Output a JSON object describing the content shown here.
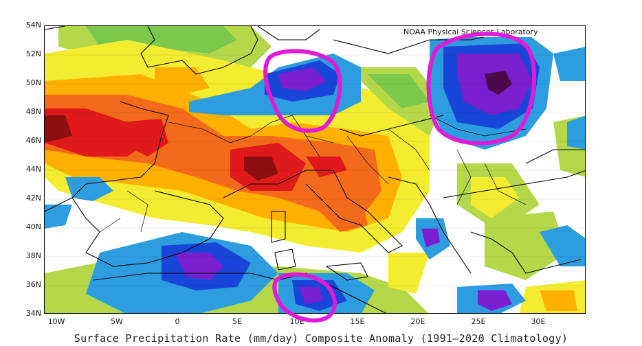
{
  "map": {
    "credit": "NOAA Physical Sciences Laboratory",
    "caption": "Surface Precipitation Rate (mm/day) Composite Anomaly (1991—2020 Climatology)",
    "lat_labels": [
      "54N",
      "52N",
      "50N",
      "48N",
      "46N",
      "44N",
      "42N",
      "40N",
      "38N",
      "36N",
      "34N"
    ],
    "lon_labels": [
      "10W",
      "5W",
      "0",
      "5E",
      "10E",
      "15E",
      "20E",
      "25E",
      "30E"
    ],
    "region": {
      "lon_min": -11,
      "lon_max": 34,
      "lat_min": 34,
      "lat_max": 54
    },
    "highlight_color": "#e01bd6",
    "highlight_circles": [
      "central-europe-positive-anomaly",
      "eastern-europe-positive-anomaly",
      "tunisia-positive-anomaly"
    ],
    "colors": {
      "dry_strong": "#8b0f0f",
      "dry": "#e01a1a",
      "dry_moderate": "#f36a1a",
      "dry_light": "#ffb000",
      "dry_weak": "#f4ec30",
      "wet_weak": "#b4d84a",
      "wet_light": "#7bc84a",
      "wet_moderate": "#2d9de0",
      "wet": "#1846d8",
      "wet_strong": "#7a1fd0",
      "wet_extreme": "#4a0a4a"
    }
  }
}
